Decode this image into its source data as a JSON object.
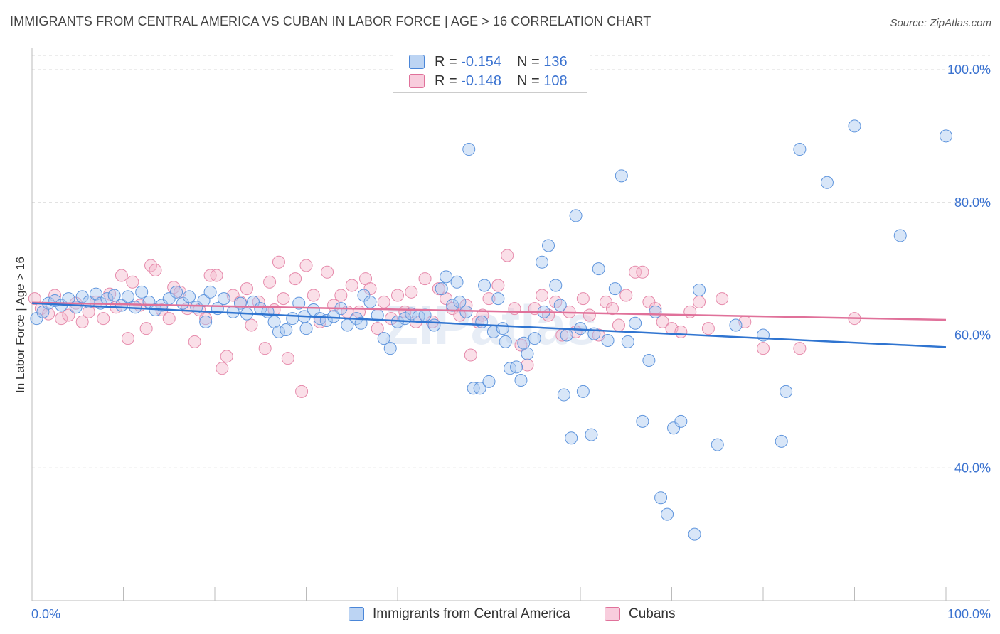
{
  "title": "IMMIGRANTS FROM CENTRAL AMERICA VS CUBAN IN LABOR FORCE | AGE > 16 CORRELATION CHART",
  "source": "Source: ZipAtlas.com",
  "watermark": "ZIPatlas",
  "colors": {
    "blue": "#4a86d8",
    "blue_fill": "#a9c8f0",
    "pink": "#e0719a",
    "pink_fill": "#f5b9cd",
    "tick": "#3a72d0"
  },
  "legend": {
    "rows": [
      {
        "r_label": "R =",
        "r_value": "-0.154",
        "n_label": "N =",
        "n_value": "136"
      },
      {
        "r_label": "R =",
        "r_value": "-0.148",
        "n_label": "N =",
        "n_value": "108"
      }
    ]
  },
  "bottom_legend": [
    "Immigrants from Central America",
    "Cubans"
  ],
  "chart_data": {
    "type": "scatter",
    "ylabel": "In Labor Force | Age > 16",
    "x_tick_labels": [
      "0.0%",
      "100.0%"
    ],
    "y_tick_labels": [
      "40.0%",
      "60.0%",
      "80.0%",
      "100.0%"
    ],
    "xlim": [
      0,
      100
    ],
    "ylim": [
      20,
      103
    ],
    "grid": true,
    "legend_position": "top-center",
    "series": [
      {
        "name": "Immigrants from Central America",
        "color": "#4a86d8",
        "trend": {
          "x": [
            0,
            100
          ],
          "y": [
            64.8,
            58.2
          ]
        },
        "points": [
          [
            0.5,
            62.5
          ],
          [
            1.2,
            63.5
          ],
          [
            1.8,
            64.8
          ],
          [
            2.5,
            65.2
          ],
          [
            3.2,
            64.5
          ],
          [
            4.0,
            65.5
          ],
          [
            4.8,
            64.2
          ],
          [
            5.5,
            65.8
          ],
          [
            6.2,
            65.0
          ],
          [
            7.0,
            66.2
          ],
          [
            7.5,
            64.8
          ],
          [
            8.2,
            65.5
          ],
          [
            9.0,
            66.0
          ],
          [
            9.8,
            64.5
          ],
          [
            10.5,
            65.8
          ],
          [
            11.3,
            64.2
          ],
          [
            12.0,
            66.5
          ],
          [
            12.8,
            65.0
          ],
          [
            13.5,
            63.8
          ],
          [
            14.2,
            64.5
          ],
          [
            15.0,
            65.5
          ],
          [
            15.8,
            66.5
          ],
          [
            16.5,
            64.8
          ],
          [
            17.2,
            65.8
          ],
          [
            18.0,
            64.2
          ],
          [
            18.8,
            65.2
          ],
          [
            19.5,
            66.5
          ],
          [
            20.3,
            64.0
          ],
          [
            21.0,
            65.5
          ],
          [
            22.0,
            63.5
          ],
          [
            22.8,
            64.8
          ],
          [
            23.5,
            63.2
          ],
          [
            24.2,
            65.0
          ],
          [
            25.0,
            64.0
          ],
          [
            25.8,
            63.5
          ],
          [
            26.5,
            62.0
          ],
          [
            27.0,
            60.5
          ],
          [
            27.8,
            60.8
          ],
          [
            28.5,
            62.5
          ],
          [
            29.2,
            64.8
          ],
          [
            30.0,
            61.0
          ],
          [
            30.8,
            63.8
          ],
          [
            31.5,
            62.5
          ],
          [
            32.2,
            62.2
          ],
          [
            33.0,
            62.8
          ],
          [
            33.8,
            64.0
          ],
          [
            34.5,
            61.5
          ],
          [
            35.5,
            62.5
          ],
          [
            36.3,
            66.0
          ],
          [
            37.0,
            65.0
          ],
          [
            37.8,
            63.0
          ],
          [
            38.5,
            59.5
          ],
          [
            39.2,
            58.0
          ],
          [
            40.0,
            62.0
          ],
          [
            40.8,
            62.5
          ],
          [
            41.5,
            63.2
          ],
          [
            42.3,
            62.8
          ],
          [
            43.0,
            63.0
          ],
          [
            44.0,
            61.5
          ],
          [
            44.8,
            67.0
          ],
          [
            45.3,
            68.8
          ],
          [
            46.0,
            64.5
          ],
          [
            46.8,
            65.0
          ],
          [
            47.5,
            63.5
          ],
          [
            48.3,
            52.0
          ],
          [
            49.0,
            52.0
          ],
          [
            50.0,
            53.0
          ],
          [
            51.0,
            65.5
          ],
          [
            47.8,
            88.0
          ],
          [
            49.2,
            62.0
          ],
          [
            50.5,
            60.5
          ],
          [
            51.5,
            61.0
          ],
          [
            52.3,
            55.0
          ],
          [
            53.0,
            55.2
          ],
          [
            53.5,
            53.2
          ],
          [
            54.2,
            57.2
          ],
          [
            55.0,
            59.5
          ],
          [
            55.8,
            71.0
          ],
          [
            56.5,
            73.5
          ],
          [
            57.3,
            67.5
          ],
          [
            57.8,
            64.5
          ],
          [
            58.2,
            51.0
          ],
          [
            59.0,
            44.5
          ],
          [
            59.5,
            78.0
          ],
          [
            60.3,
            51.5
          ],
          [
            61.2,
            45.0
          ],
          [
            62.0,
            70.0
          ],
          [
            63.0,
            59.2
          ],
          [
            63.8,
            67.0
          ],
          [
            64.5,
            84.0
          ],
          [
            65.2,
            59.0
          ],
          [
            66.0,
            61.8
          ],
          [
            66.8,
            47.0
          ],
          [
            67.5,
            56.2
          ],
          [
            68.2,
            63.5
          ],
          [
            68.8,
            35.5
          ],
          [
            69.5,
            33.0
          ],
          [
            70.2,
            46.0
          ],
          [
            71.0,
            47.0
          ],
          [
            72.5,
            30.0
          ],
          [
            73.0,
            66.8
          ],
          [
            75.0,
            43.5
          ],
          [
            77.0,
            61.5
          ],
          [
            80.0,
            60.0
          ],
          [
            82.0,
            44.0
          ],
          [
            82.5,
            51.5
          ],
          [
            84.0,
            88.0
          ],
          [
            87.0,
            83.0
          ],
          [
            90.0,
            91.5
          ],
          [
            95.0,
            75.0
          ],
          [
            100.0,
            90.0
          ],
          [
            19.0,
            62.0
          ],
          [
            29.8,
            62.8
          ],
          [
            36.0,
            61.8
          ],
          [
            49.5,
            67.5
          ],
          [
            56.0,
            63.5
          ],
          [
            60.0,
            61.0
          ],
          [
            46.5,
            68.0
          ],
          [
            51.8,
            59.0
          ],
          [
            53.8,
            58.8
          ],
          [
            58.5,
            60.0
          ],
          [
            61.5,
            60.2
          ]
        ]
      },
      {
        "name": "Cubans",
        "color": "#e0719a",
        "trend": {
          "x": [
            0,
            100
          ],
          "y": [
            64.9,
            62.3
          ]
        },
        "points": [
          [
            0.3,
            65.5
          ],
          [
            1.0,
            64.0
          ],
          [
            1.8,
            63.2
          ],
          [
            2.5,
            66.0
          ],
          [
            3.2,
            62.5
          ],
          [
            4.0,
            63.0
          ],
          [
            4.8,
            64.8
          ],
          [
            5.5,
            62.0
          ],
          [
            6.2,
            63.5
          ],
          [
            7.0,
            65.0
          ],
          [
            7.8,
            62.5
          ],
          [
            8.5,
            66.2
          ],
          [
            9.2,
            64.2
          ],
          [
            9.8,
            69.0
          ],
          [
            10.5,
            59.5
          ],
          [
            11.0,
            68.0
          ],
          [
            11.8,
            64.5
          ],
          [
            12.5,
            61.0
          ],
          [
            13.0,
            70.5
          ],
          [
            13.5,
            69.8
          ],
          [
            14.2,
            63.8
          ],
          [
            15.0,
            62.5
          ],
          [
            15.5,
            67.2
          ],
          [
            16.2,
            66.5
          ],
          [
            17.0,
            64.0
          ],
          [
            17.8,
            59.0
          ],
          [
            18.3,
            63.8
          ],
          [
            19.0,
            62.5
          ],
          [
            19.5,
            69.0
          ],
          [
            20.2,
            69.0
          ],
          [
            20.8,
            55.0
          ],
          [
            21.3,
            56.8
          ],
          [
            22.0,
            66.0
          ],
          [
            22.8,
            65.0
          ],
          [
            23.5,
            67.0
          ],
          [
            24.0,
            61.5
          ],
          [
            24.8,
            65.0
          ],
          [
            25.5,
            58.0
          ],
          [
            26.0,
            68.0
          ],
          [
            26.5,
            63.8
          ],
          [
            27.0,
            71.0
          ],
          [
            27.5,
            65.5
          ],
          [
            28.0,
            56.5
          ],
          [
            28.8,
            68.5
          ],
          [
            29.5,
            51.5
          ],
          [
            30.0,
            70.5
          ],
          [
            30.8,
            66.0
          ],
          [
            31.5,
            62.0
          ],
          [
            32.3,
            69.5
          ],
          [
            33.0,
            64.5
          ],
          [
            33.8,
            66.0
          ],
          [
            34.5,
            63.5
          ],
          [
            35.0,
            67.5
          ],
          [
            35.8,
            63.5
          ],
          [
            36.5,
            68.5
          ],
          [
            37.0,
            67.0
          ],
          [
            37.8,
            61.0
          ],
          [
            38.5,
            65.0
          ],
          [
            39.3,
            62.5
          ],
          [
            40.0,
            66.0
          ],
          [
            40.8,
            63.5
          ],
          [
            41.5,
            66.5
          ],
          [
            42.0,
            62.0
          ],
          [
            43.0,
            68.5
          ],
          [
            43.8,
            62.0
          ],
          [
            44.5,
            67.0
          ],
          [
            45.3,
            65.5
          ],
          [
            46.0,
            64.0
          ],
          [
            46.8,
            63.0
          ],
          [
            47.5,
            64.5
          ],
          [
            48.0,
            57.0
          ],
          [
            48.8,
            62.0
          ],
          [
            49.3,
            63.0
          ],
          [
            50.0,
            65.5
          ],
          [
            51.0,
            67.5
          ],
          [
            52.0,
            72.0
          ],
          [
            52.8,
            64.0
          ],
          [
            53.5,
            58.5
          ],
          [
            54.2,
            55.5
          ],
          [
            55.0,
            64.0
          ],
          [
            55.8,
            66.0
          ],
          [
            56.5,
            63.0
          ],
          [
            57.3,
            65.0
          ],
          [
            58.0,
            60.0
          ],
          [
            58.8,
            63.5
          ],
          [
            59.5,
            60.5
          ],
          [
            60.3,
            65.5
          ],
          [
            61.0,
            63.0
          ],
          [
            62.0,
            60.0
          ],
          [
            62.8,
            65.0
          ],
          [
            63.5,
            64.0
          ],
          [
            64.2,
            61.5
          ],
          [
            65.0,
            66.0
          ],
          [
            66.0,
            69.5
          ],
          [
            66.8,
            69.5
          ],
          [
            67.5,
            65.0
          ],
          [
            68.2,
            64.0
          ],
          [
            69.0,
            62.0
          ],
          [
            70.0,
            61.0
          ],
          [
            71.0,
            60.5
          ],
          [
            72.0,
            63.5
          ],
          [
            73.0,
            65.0
          ],
          [
            74.0,
            61.0
          ],
          [
            75.5,
            65.5
          ],
          [
            78.0,
            62.0
          ],
          [
            80.0,
            58.0
          ],
          [
            84.0,
            58.0
          ],
          [
            90.0,
            62.5
          ]
        ]
      }
    ]
  }
}
